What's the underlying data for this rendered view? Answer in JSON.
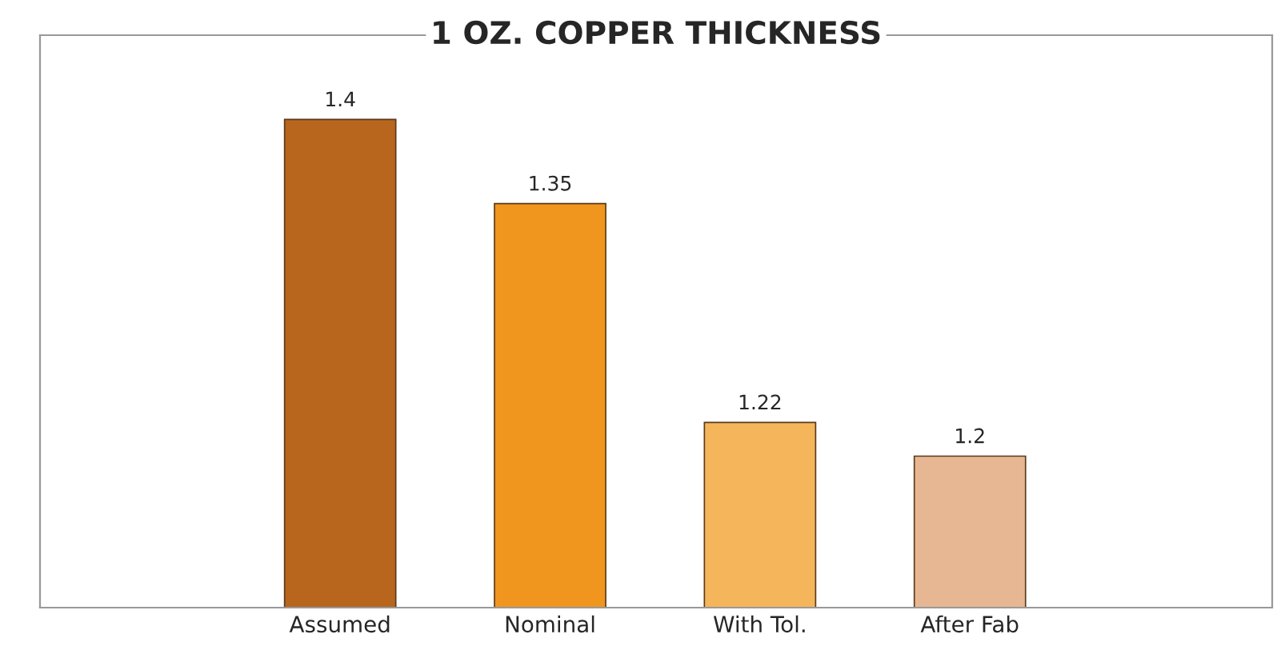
{
  "chart_data": {
    "type": "bar",
    "title": "1 OZ. COPPER THICKNESS",
    "categories": [
      "Assumed",
      "Nominal",
      "With Tol.",
      "After Fab"
    ],
    "values": [
      1.4,
      1.35,
      1.22,
      1.2
    ],
    "colors": [
      "#b8651e",
      "#f0961e",
      "#f5b55a",
      "#e6b792"
    ],
    "ylim": [
      1.11,
      1.45
    ],
    "tick_labels": "x",
    "data_labels": true,
    "grid": false,
    "legend": false
  }
}
